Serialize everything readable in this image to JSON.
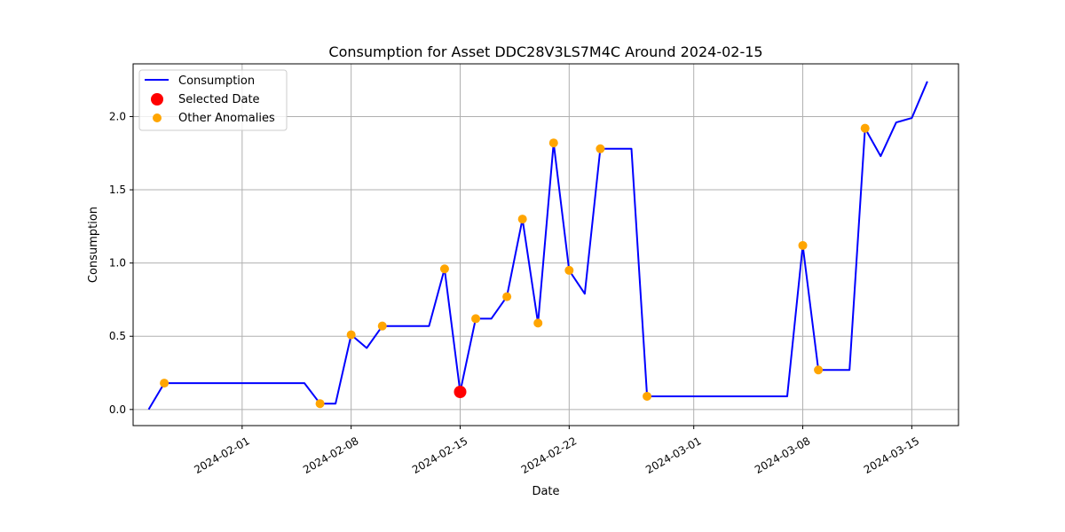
{
  "chart_data": {
    "type": "line",
    "title": "Consumption for Asset DDC28V3LS7M4C Around 2024-02-15",
    "xlabel": "Date",
    "ylabel": "Consumption",
    "xlim": [
      "2024-01-25",
      "2024-03-18"
    ],
    "ylim": [
      -0.11,
      2.36
    ],
    "x_ticks": [
      "2024-02-01",
      "2024-02-08",
      "2024-02-15",
      "2024-02-22",
      "2024-03-01",
      "2024-03-08",
      "2024-03-15"
    ],
    "y_ticks": [
      "0.0",
      "0.5",
      "1.0",
      "1.5",
      "2.0"
    ],
    "grid": true,
    "legend_position": "top-left",
    "series": [
      {
        "name": "Consumption",
        "kind": "line",
        "color": "#0000ff",
        "points": [
          [
            "2024-01-26",
            0.0
          ],
          [
            "2024-01-27",
            0.18
          ],
          [
            "2024-02-05",
            0.18
          ],
          [
            "2024-02-06",
            0.04
          ],
          [
            "2024-02-07",
            0.04
          ],
          [
            "2024-02-08",
            0.51
          ],
          [
            "2024-02-09",
            0.42
          ],
          [
            "2024-02-10",
            0.57
          ],
          [
            "2024-02-13",
            0.57
          ],
          [
            "2024-02-14",
            0.96
          ],
          [
            "2024-02-15",
            0.12
          ],
          [
            "2024-02-16",
            0.62
          ],
          [
            "2024-02-17",
            0.62
          ],
          [
            "2024-02-18",
            0.77
          ],
          [
            "2024-02-19",
            1.3
          ],
          [
            "2024-02-20",
            0.59
          ],
          [
            "2024-02-21",
            1.82
          ],
          [
            "2024-02-22",
            0.95
          ],
          [
            "2024-02-23",
            0.79
          ],
          [
            "2024-02-24",
            1.78
          ],
          [
            "2024-02-26",
            1.78
          ],
          [
            "2024-02-27",
            0.09
          ],
          [
            "2024-03-07",
            0.09
          ],
          [
            "2024-03-08",
            1.12
          ],
          [
            "2024-03-09",
            0.27
          ],
          [
            "2024-03-11",
            0.27
          ],
          [
            "2024-03-12",
            1.92
          ],
          [
            "2024-03-13",
            1.73
          ],
          [
            "2024-03-14",
            1.96
          ],
          [
            "2024-03-15",
            1.99
          ],
          [
            "2024-03-16",
            2.24
          ]
        ]
      },
      {
        "name": "Selected Date",
        "kind": "scatter",
        "color": "#ff0000",
        "points": [
          [
            "2024-02-15",
            0.12
          ]
        ]
      },
      {
        "name": "Other Anomalies",
        "kind": "scatter",
        "color": "#ffa500",
        "points": [
          [
            "2024-01-27",
            0.18
          ],
          [
            "2024-02-06",
            0.04
          ],
          [
            "2024-02-08",
            0.51
          ],
          [
            "2024-02-10",
            0.57
          ],
          [
            "2024-02-14",
            0.96
          ],
          [
            "2024-02-16",
            0.62
          ],
          [
            "2024-02-18",
            0.77
          ],
          [
            "2024-02-19",
            1.3
          ],
          [
            "2024-02-20",
            0.59
          ],
          [
            "2024-02-21",
            1.82
          ],
          [
            "2024-02-22",
            0.95
          ],
          [
            "2024-02-24",
            1.78
          ],
          [
            "2024-02-27",
            0.09
          ],
          [
            "2024-03-08",
            1.12
          ],
          [
            "2024-03-09",
            0.27
          ],
          [
            "2024-03-12",
            1.92
          ]
        ]
      }
    ]
  }
}
